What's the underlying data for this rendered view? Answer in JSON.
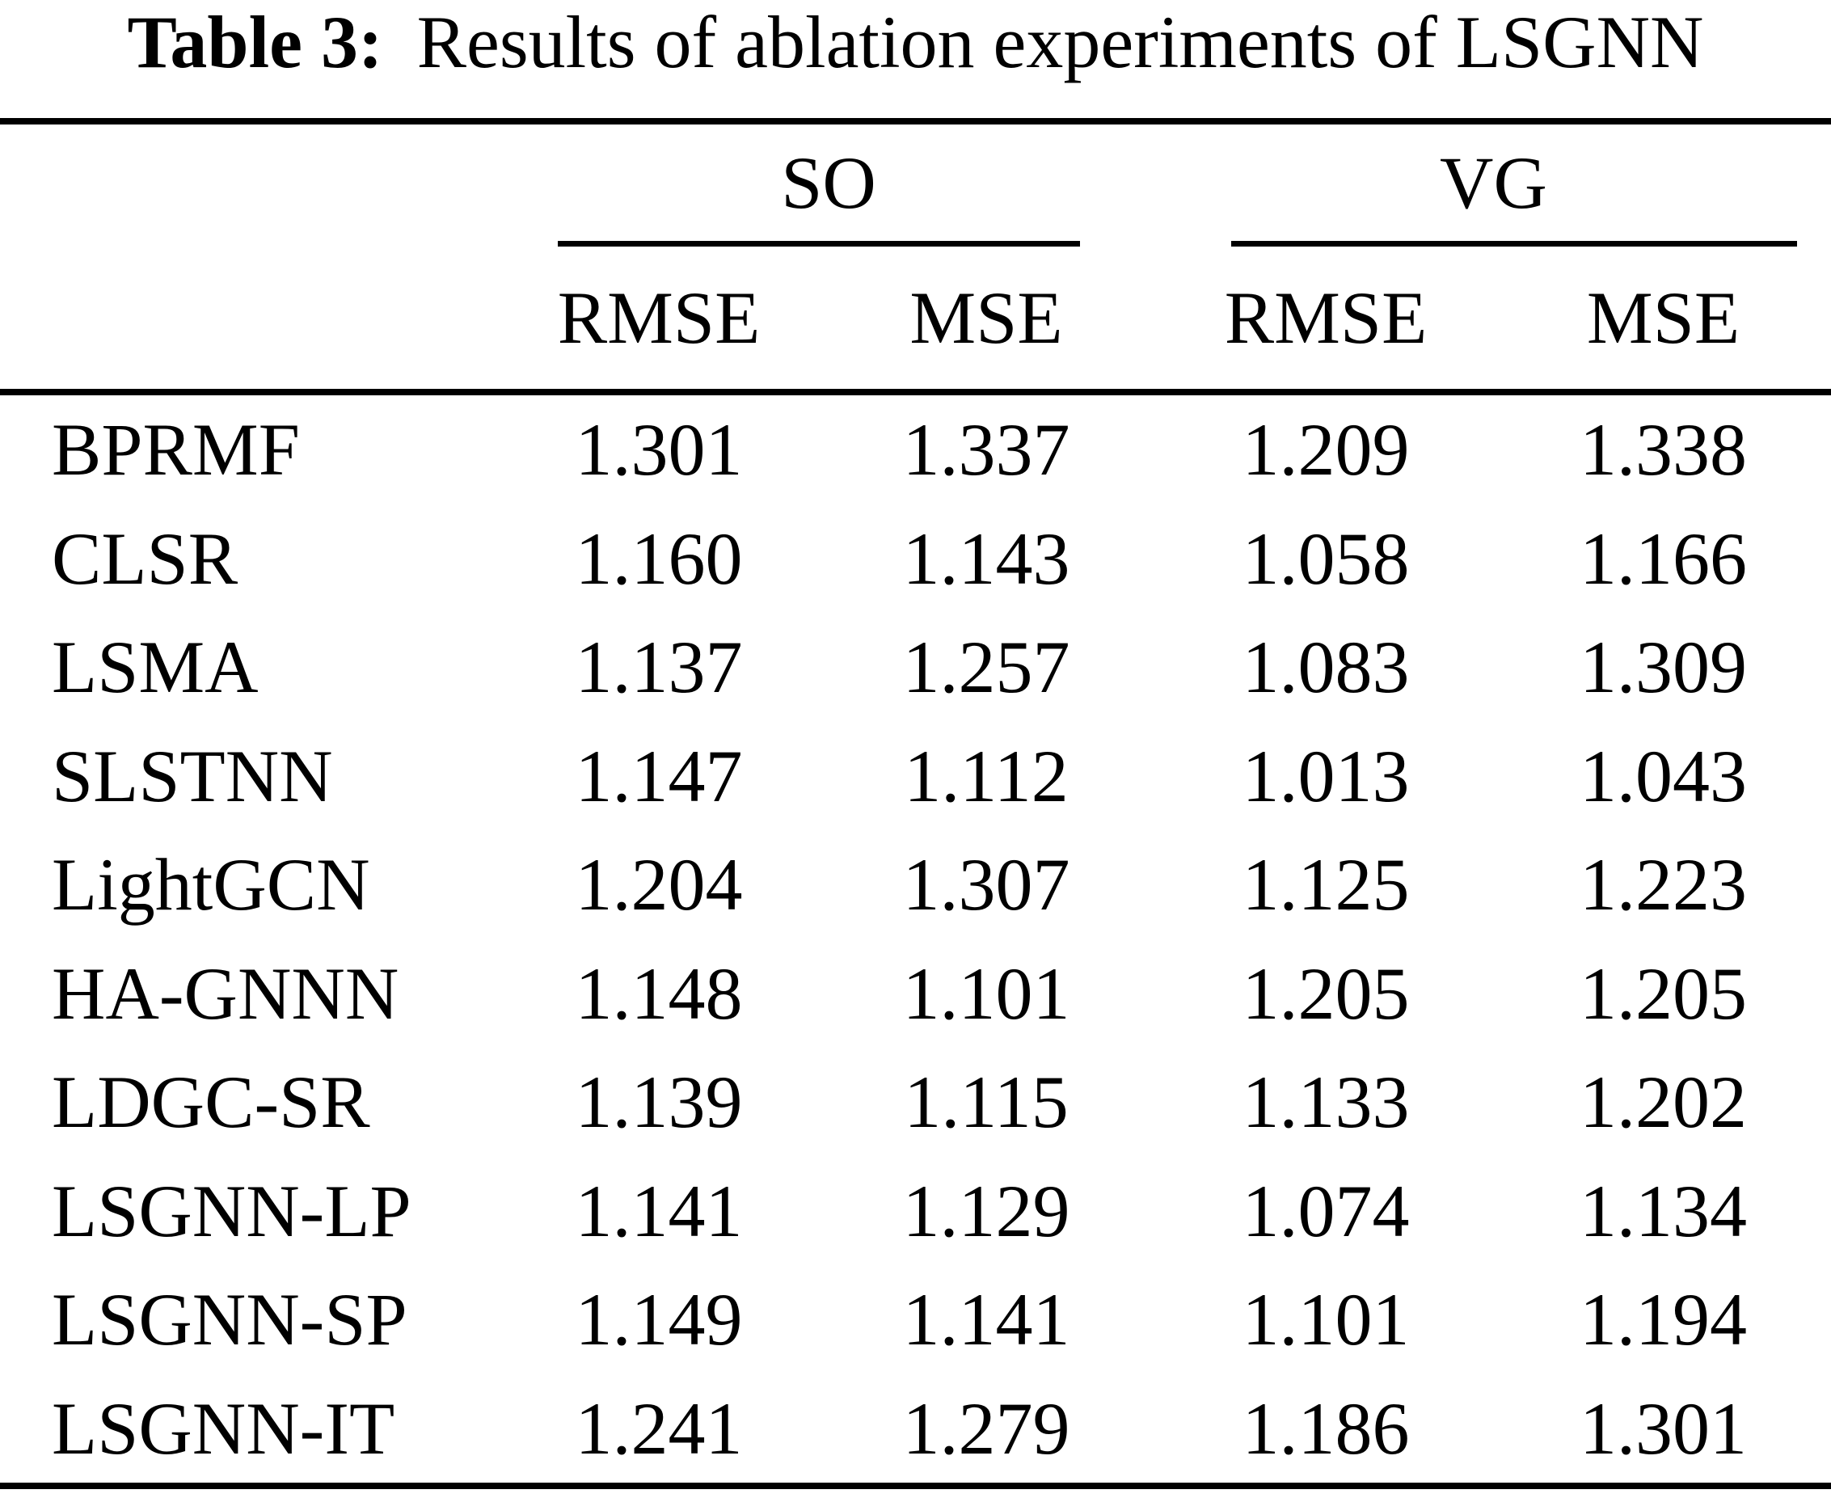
{
  "caption": {
    "label": "Table 3:",
    "text": "Results of ablation experiments of LSGNN"
  },
  "column_groups": [
    {
      "label": "SO",
      "columns": [
        "RMSE",
        "MSE"
      ]
    },
    {
      "label": "VG",
      "columns": [
        "RMSE",
        "MSE"
      ]
    }
  ],
  "rows": [
    {
      "model": "BPRMF",
      "so_rmse": "1.301",
      "so_mse": "1.337",
      "vg_rmse": "1.209",
      "vg_mse": "1.338"
    },
    {
      "model": "CLSR",
      "so_rmse": "1.160",
      "so_mse": "1.143",
      "vg_rmse": "1.058",
      "vg_mse": "1.166"
    },
    {
      "model": "LSMA",
      "so_rmse": "1.137",
      "so_mse": "1.257",
      "vg_rmse": "1.083",
      "vg_mse": "1.309"
    },
    {
      "model": "SLSTNN",
      "so_rmse": "1.147",
      "so_mse": "1.112",
      "vg_rmse": "1.013",
      "vg_mse": "1.043"
    },
    {
      "model": "LightGCN",
      "so_rmse": "1.204",
      "so_mse": "1.307",
      "vg_rmse": "1.125",
      "vg_mse": "1.223"
    },
    {
      "model": "HA-GNNN",
      "so_rmse": "1.148",
      "so_mse": "1.101",
      "vg_rmse": "1.205",
      "vg_mse": "1.205"
    },
    {
      "model": "LDGC-SR",
      "so_rmse": "1.139",
      "so_mse": "1.115",
      "vg_rmse": "1.133",
      "vg_mse": "1.202"
    },
    {
      "model": "LSGNN-LP",
      "so_rmse": "1.141",
      "so_mse": "1.129",
      "vg_rmse": "1.074",
      "vg_mse": "1.134"
    },
    {
      "model": "LSGNN-SP",
      "so_rmse": "1.149",
      "so_mse": "1.141",
      "vg_rmse": "1.101",
      "vg_mse": "1.194"
    },
    {
      "model": "LSGNN-IT",
      "so_rmse": "1.241",
      "so_mse": "1.279",
      "vg_rmse": "1.186",
      "vg_mse": "1.301"
    }
  ],
  "colors": {
    "text": "#000000",
    "background": "#ffffff",
    "rule": "#000000"
  }
}
